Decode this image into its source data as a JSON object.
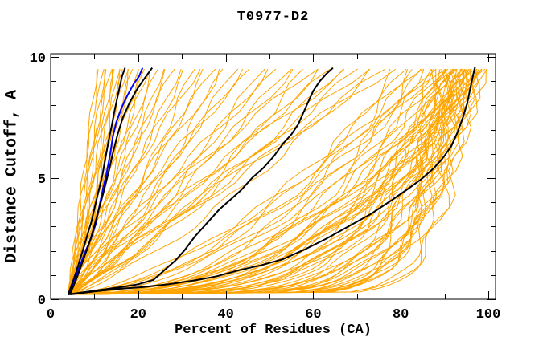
{
  "chart_data": {
    "type": "line",
    "title": "T0977-D2",
    "xlabel": "Percent of Residues (CA)",
    "ylabel": "Distance Cutoff, A",
    "xlim": [
      0,
      101.6
    ],
    "ylim": [
      0,
      10.1
    ],
    "x_major_ticks": [
      0,
      20,
      40,
      60,
      80,
      100
    ],
    "x_minor_step": 10,
    "y_major_ticks": [
      0,
      5,
      10
    ],
    "y_minor_step": 1,
    "grid": false,
    "legend": "none",
    "colors": {
      "ensemble": "#FFA500",
      "highlight": "#000000",
      "reference": "#0000FF",
      "axis": "#000000",
      "background": "#FFFFFF"
    },
    "named_series": [
      {
        "name": "blue-curve",
        "color": "#0000FF",
        "width": 2,
        "points": [
          [
            4.2,
            0.2
          ],
          [
            5.5,
            0.8
          ],
          [
            6.5,
            1.3
          ],
          [
            7.8,
            1.9
          ],
          [
            9.2,
            2.5
          ],
          [
            10.3,
            3.1
          ],
          [
            11.2,
            3.9
          ],
          [
            12.0,
            4.6
          ],
          [
            12.8,
            5.2
          ],
          [
            13.6,
            6.0
          ],
          [
            14.2,
            6.7
          ],
          [
            15.0,
            7.3
          ],
          [
            16.2,
            7.9
          ],
          [
            17.5,
            8.4
          ],
          [
            19.0,
            8.9
          ],
          [
            20.2,
            9.2
          ],
          [
            21.0,
            9.55
          ]
        ]
      },
      {
        "name": "black-curve-left-a",
        "color": "#000000",
        "width": 2,
        "points": [
          [
            4.0,
            0.2
          ],
          [
            5.2,
            0.8
          ],
          [
            6.3,
            1.4
          ],
          [
            7.5,
            2.1
          ],
          [
            8.3,
            2.6
          ],
          [
            9.3,
            3.2
          ],
          [
            10.2,
            3.9
          ],
          [
            11.0,
            4.5
          ],
          [
            11.8,
            5.1
          ],
          [
            12.6,
            5.9
          ],
          [
            13.2,
            6.5
          ],
          [
            13.9,
            7.1
          ],
          [
            14.5,
            7.7
          ],
          [
            15.1,
            8.2
          ],
          [
            15.7,
            8.7
          ],
          [
            16.3,
            9.2
          ],
          [
            17.0,
            9.55
          ]
        ]
      },
      {
        "name": "black-curve-left-b",
        "color": "#000000",
        "width": 2,
        "points": [
          [
            4.4,
            0.2
          ],
          [
            5.8,
            0.8
          ],
          [
            7.2,
            1.5
          ],
          [
            8.6,
            2.2
          ],
          [
            9.8,
            2.9
          ],
          [
            11.0,
            3.7
          ],
          [
            12.2,
            4.5
          ],
          [
            13.3,
            5.3
          ],
          [
            14.3,
            6.1
          ],
          [
            15.3,
            6.8
          ],
          [
            16.5,
            7.5
          ],
          [
            18.0,
            8.1
          ],
          [
            19.5,
            8.6
          ],
          [
            21.0,
            9.0
          ],
          [
            22.2,
            9.3
          ],
          [
            23.2,
            9.55
          ]
        ]
      },
      {
        "name": "black-curve-middle",
        "color": "#000000",
        "width": 2,
        "points": [
          [
            4.0,
            0.2
          ],
          [
            8.0,
            0.3
          ],
          [
            12.0,
            0.4
          ],
          [
            16.0,
            0.5
          ],
          [
            20.0,
            0.62
          ],
          [
            23.5,
            0.8
          ],
          [
            26.0,
            1.2
          ],
          [
            28.5,
            1.6
          ],
          [
            30.5,
            2.0
          ],
          [
            33.0,
            2.6
          ],
          [
            35.5,
            3.1
          ],
          [
            38.5,
            3.7
          ],
          [
            41.0,
            4.1
          ],
          [
            43.5,
            4.5
          ],
          [
            46.0,
            5.0
          ],
          [
            48.5,
            5.4
          ],
          [
            51.0,
            5.9
          ],
          [
            53.0,
            6.4
          ],
          [
            55.0,
            6.8
          ],
          [
            56.5,
            7.2
          ],
          [
            57.5,
            7.6
          ],
          [
            58.5,
            8.0
          ],
          [
            60.0,
            8.6
          ],
          [
            61.5,
            9.0
          ],
          [
            63.0,
            9.3
          ],
          [
            64.5,
            9.55
          ]
        ]
      },
      {
        "name": "black-curve-right",
        "color": "#000000",
        "width": 2,
        "points": [
          [
            4.5,
            0.2
          ],
          [
            10.0,
            0.32
          ],
          [
            15.0,
            0.42
          ],
          [
            21.0,
            0.5
          ],
          [
            27.0,
            0.62
          ],
          [
            33.0,
            0.78
          ],
          [
            38.0,
            0.95
          ],
          [
            43.0,
            1.2
          ],
          [
            48.0,
            1.4
          ],
          [
            53.0,
            1.65
          ],
          [
            58.0,
            2.05
          ],
          [
            63.0,
            2.5
          ],
          [
            68.0,
            3.0
          ],
          [
            73.0,
            3.5
          ],
          [
            78.0,
            4.1
          ],
          [
            82.0,
            4.6
          ],
          [
            85.0,
            5.0
          ],
          [
            87.5,
            5.4
          ],
          [
            89.5,
            5.8
          ],
          [
            91.5,
            6.3
          ],
          [
            93.0,
            6.9
          ],
          [
            94.2,
            7.5
          ],
          [
            95.2,
            8.1
          ],
          [
            96.0,
            8.8
          ],
          [
            96.6,
            9.3
          ],
          [
            97.0,
            9.6
          ]
        ]
      }
    ],
    "ensemble": {
      "color": "#FFA500",
      "width": 1,
      "y_start": 0.2,
      "y_end": 9.5,
      "curves": [
        [
          4.0,
          10.5,
          0.95
        ],
        [
          4.2,
          11.2,
          1.1
        ],
        [
          4.0,
          11.8,
          0.8
        ],
        [
          4.3,
          12.4,
          1.0
        ],
        [
          4.1,
          13.0,
          0.9
        ],
        [
          4.0,
          13.6,
          1.15
        ],
        [
          4.4,
          14.2,
          0.85
        ],
        [
          4.0,
          14.8,
          1.0
        ],
        [
          4.2,
          15.4,
          0.75
        ],
        [
          4.1,
          16.0,
          1.05
        ],
        [
          4.0,
          16.6,
          0.9
        ],
        [
          4.3,
          17.3,
          1.0
        ],
        [
          4.0,
          18.0,
          0.82
        ],
        [
          4.2,
          18.8,
          1.1
        ],
        [
          4.1,
          19.6,
          0.92
        ],
        [
          4.0,
          20.5,
          1.0
        ],
        [
          4.3,
          21.4,
          0.85
        ],
        [
          4.0,
          22.3,
          1.05
        ],
        [
          4.2,
          23.3,
          0.9
        ],
        [
          4.1,
          24.4,
          1.0
        ],
        [
          4.0,
          25.5,
          0.8
        ],
        [
          4.3,
          26.7,
          0.95
        ],
        [
          4.1,
          28.0,
          1.08
        ],
        [
          4.0,
          29.5,
          0.88
        ],
        [
          4.0,
          31.0,
          1.0
        ],
        [
          4.2,
          32.5,
          0.78
        ],
        [
          4.0,
          34.0,
          1.15
        ],
        [
          4.3,
          35.5,
          0.9
        ],
        [
          4.1,
          37.0,
          1.0
        ],
        [
          4.0,
          38.5,
          0.7
        ],
        [
          4.2,
          40.0,
          1.1
        ],
        [
          4.0,
          42.0,
          0.85
        ],
        [
          4.3,
          44.0,
          1.0
        ],
        [
          4.1,
          46.0,
          1.2
        ],
        [
          4.0,
          48.0,
          0.75
        ],
        [
          4.2,
          50.0,
          0.95
        ],
        [
          4.0,
          52.0,
          1.1
        ],
        [
          4.3,
          54.0,
          0.85
        ],
        [
          4.1,
          56.0,
          1.0
        ],
        [
          4.0,
          58.0,
          0.72
        ],
        [
          4.2,
          60.0,
          1.15
        ],
        [
          4.0,
          62.0,
          0.9
        ],
        [
          4.3,
          64.0,
          1.0
        ],
        [
          4.1,
          66.0,
          0.8
        ],
        [
          4.0,
          68.0,
          1.1
        ],
        [
          4.2,
          70.0,
          0.88
        ],
        [
          4.0,
          72.0,
          1.0
        ],
        [
          4.3,
          74.0,
          0.76
        ],
        [
          4.1,
          76.0,
          0.95
        ],
        [
          4.0,
          78.0,
          1.05
        ],
        [
          4.0,
          79.0,
          0.5
        ],
        [
          4.2,
          80.5,
          0.42
        ],
        [
          4.0,
          82.0,
          0.6
        ],
        [
          4.3,
          83.0,
          0.38
        ],
        [
          4.1,
          84.0,
          0.55
        ],
        [
          4.0,
          85.0,
          0.45
        ],
        [
          4.2,
          86.0,
          0.65
        ],
        [
          4.0,
          86.8,
          0.4
        ],
        [
          4.3,
          87.5,
          0.52
        ],
        [
          4.1,
          88.2,
          0.35
        ],
        [
          4.0,
          88.8,
          0.6
        ],
        [
          4.2,
          89.4,
          0.45
        ],
        [
          4.0,
          90.0,
          0.08
        ],
        [
          4.2,
          91.0,
          0.3
        ],
        [
          4.0,
          92.0,
          0.15
        ],
        [
          4.3,
          93.0,
          0.4
        ],
        [
          4.1,
          94.0,
          0.1
        ],
        [
          4.0,
          95.0,
          0.25
        ],
        [
          4.2,
          96.0,
          0.18
        ],
        [
          4.0,
          97.0,
          0.35
        ],
        [
          4.3,
          98.0,
          0.12
        ],
        [
          4.1,
          98.5,
          0.28
        ],
        [
          4.0,
          90.5,
          0.2
        ],
        [
          4.2,
          91.5,
          0.09
        ],
        [
          4.0,
          92.5,
          0.32
        ],
        [
          4.3,
          93.5,
          0.14
        ],
        [
          4.1,
          94.5,
          0.42
        ],
        [
          4.0,
          95.5,
          0.11
        ],
        [
          4.2,
          96.5,
          0.24
        ],
        [
          4.0,
          97.5,
          0.16
        ],
        [
          4.3,
          98.2,
          0.38
        ],
        [
          4.1,
          99.0,
          0.2
        ],
        [
          4.0,
          89.5,
          0.13
        ],
        [
          4.2,
          90.8,
          0.36
        ],
        [
          4.0,
          91.8,
          0.1
        ],
        [
          4.3,
          92.8,
          0.22
        ],
        [
          4.1,
          93.8,
          0.45
        ],
        [
          4.0,
          94.8,
          0.12
        ],
        [
          4.2,
          95.8,
          0.3
        ],
        [
          4.0,
          96.8,
          0.08
        ],
        [
          4.3,
          97.8,
          0.26
        ],
        [
          4.1,
          98.8,
          0.15
        ],
        [
          4.0,
          89.2,
          0.4
        ],
        [
          4.2,
          90.2,
          0.17
        ],
        [
          4.0,
          91.3,
          0.28
        ],
        [
          4.3,
          92.3,
          0.09
        ],
        [
          4.1,
          93.3,
          0.33
        ],
        [
          4.0,
          94.3,
          0.19
        ],
        [
          4.2,
          95.3,
          0.07
        ],
        [
          4.0,
          96.3,
          0.29
        ],
        [
          4.3,
          97.3,
          0.13
        ],
        [
          4.1,
          98.4,
          0.36
        ],
        [
          4.0,
          88.5,
          0.21
        ],
        [
          4.2,
          89.8,
          0.11
        ],
        [
          4.0,
          90.9,
          0.31
        ],
        [
          4.3,
          91.9,
          0.16
        ],
        [
          4.1,
          92.9,
          0.07
        ],
        [
          4.0,
          93.9,
          0.27
        ],
        [
          4.2,
          94.9,
          0.14
        ],
        [
          4.0,
          95.9,
          0.4
        ]
      ]
    }
  }
}
